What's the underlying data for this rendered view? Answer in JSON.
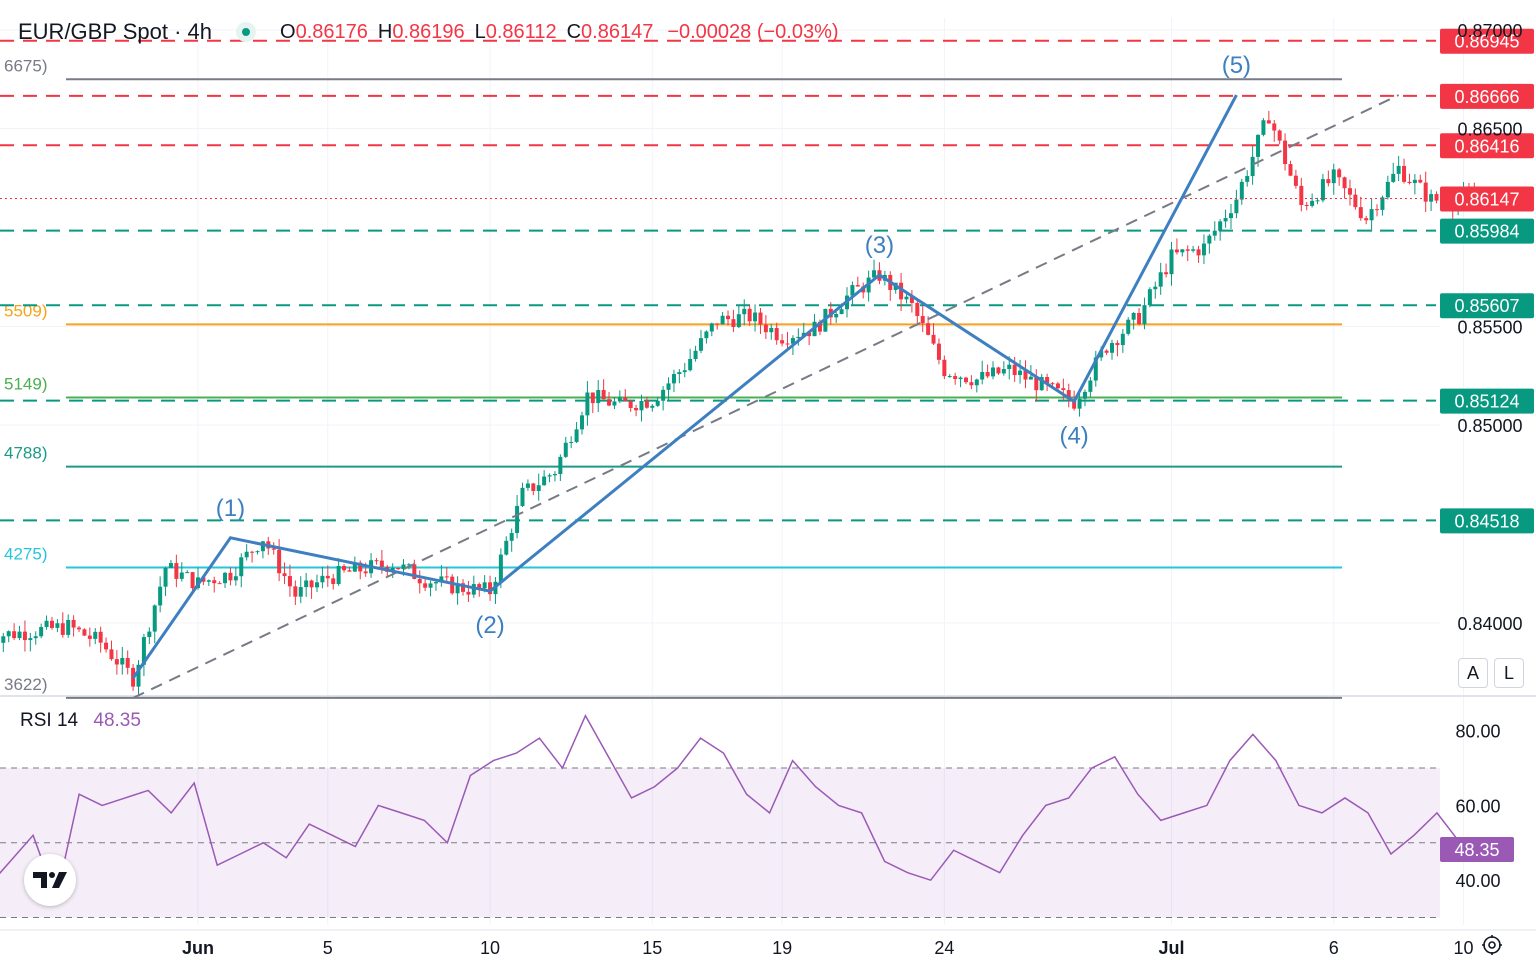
{
  "header": {
    "symbol": "EUR/GBP Spot · 4h",
    "open_label": "O",
    "open": "0.86176",
    "high_label": "H",
    "high": "0.86196",
    "low_label": "L",
    "low": "0.86112",
    "close_label": "C",
    "close": "0.86147",
    "change": "−0.00028 (−0.03%)"
  },
  "rsi": {
    "label": "RSI 14",
    "value": "48.35"
  },
  "controls": {
    "auto": "A",
    "log": "L"
  },
  "colors": {
    "up": "#089981",
    "down": "#f23645",
    "wave": "#3d7fc1",
    "rsi": "#9b59b6",
    "fib_orange": "#f7a21b",
    "fib_green": "#4caf50",
    "fib_teal": "#1d9a87",
    "fib_cyan": "#26c6da",
    "fib_gray": "#787b86"
  },
  "chart_data": [
    {
      "type": "candlestick",
      "title": "EUR/GBP Spot · 4h",
      "x_labels": [
        "Jun",
        "5",
        "10",
        "15",
        "19",
        "24",
        "Jul",
        "6",
        "10"
      ],
      "y_ticks": [
        "0.84000",
        "0.85000",
        "0.85500",
        "0.86500",
        "0.87000"
      ],
      "ylim": [
        0.8365,
        0.8706
      ],
      "current_price": "0.86147",
      "price_path": [
        {
          "date": "May 28",
          "price": 0.8398
        },
        {
          "date": "May 29",
          "price": 0.839
        },
        {
          "date": "May 30",
          "price": 0.8372
        },
        {
          "date": "May 31",
          "price": 0.8428
        },
        {
          "date": "Jun 1",
          "price": 0.842
        },
        {
          "date": "Jun 2",
          "price": 0.8425
        },
        {
          "date": "Jun 3",
          "price": 0.8443
        },
        {
          "date": "Jun 4",
          "price": 0.8414
        },
        {
          "date": "Jun 5",
          "price": 0.8423
        },
        {
          "date": "Jun 6",
          "price": 0.8427
        },
        {
          "date": "Jun 7",
          "price": 0.843
        },
        {
          "date": "Jun 8",
          "price": 0.8422
        },
        {
          "date": "Jun 9",
          "price": 0.8418
        },
        {
          "date": "Jun 10",
          "price": 0.8416
        },
        {
          "date": "Jun 11",
          "price": 0.8465
        },
        {
          "date": "Jun 12",
          "price": 0.8477
        },
        {
          "date": "Jun 13",
          "price": 0.8515
        },
        {
          "date": "Jun 14",
          "price": 0.851
        },
        {
          "date": "Jun 15",
          "price": 0.8513
        },
        {
          "date": "Jun 16",
          "price": 0.853
        },
        {
          "date": "Jun 17",
          "price": 0.8553
        },
        {
          "date": "Jun 18",
          "price": 0.8555
        },
        {
          "date": "Jun 19",
          "price": 0.8545
        },
        {
          "date": "Jun 20",
          "price": 0.8549
        },
        {
          "date": "Jun 21",
          "price": 0.8565
        },
        {
          "date": "Jun 22",
          "price": 0.8576
        },
        {
          "date": "Jun 23",
          "price": 0.856
        },
        {
          "date": "Jun 24",
          "price": 0.8528
        },
        {
          "date": "Jun 25",
          "price": 0.8523
        },
        {
          "date": "Jun 26",
          "price": 0.8528
        },
        {
          "date": "Jun 27",
          "price": 0.852
        },
        {
          "date": "Jun 28",
          "price": 0.8512
        },
        {
          "date": "Jun 29",
          "price": 0.854
        },
        {
          "date": "Jun 30",
          "price": 0.8555
        },
        {
          "date": "Jul 1",
          "price": 0.8585
        },
        {
          "date": "Jul 2",
          "price": 0.859
        },
        {
          "date": "Jul 3",
          "price": 0.8615
        },
        {
          "date": "Jul 4",
          "price": 0.8657
        },
        {
          "date": "Jul 5",
          "price": 0.8611
        },
        {
          "date": "Jul 6",
          "price": 0.8625
        },
        {
          "date": "Jul 7",
          "price": 0.8605
        },
        {
          "date": "Jul 8",
          "price": 0.863
        },
        {
          "date": "Jul 9",
          "price": 0.8614
        }
      ],
      "horizontal_levels": [
        {
          "price": 0.86945,
          "label": "0.86945",
          "style": "dashed",
          "color": "#f23645"
        },
        {
          "price": 0.86666,
          "label": "0.86666",
          "style": "dashed",
          "color": "#f23645"
        },
        {
          "price": 0.86416,
          "label": "0.86416",
          "style": "dashed",
          "color": "#f23645"
        },
        {
          "price": 0.85984,
          "label": "0.85984",
          "style": "dashed",
          "color": "#089981"
        },
        {
          "price": 0.85607,
          "label": "0.85607",
          "style": "dashed",
          "color": "#089981"
        },
        {
          "price": 0.85124,
          "label": "0.85124",
          "style": "dashed",
          "color": "#089981"
        },
        {
          "price": 0.84518,
          "label": "0.84518",
          "style": "dashed",
          "color": "#089981"
        }
      ],
      "fib_levels": [
        {
          "price": 0.8675,
          "label": "6675)",
          "color": "#787b86"
        },
        {
          "price": 0.8551,
          "label": "5509)",
          "color": "#f7a21b"
        },
        {
          "price": 0.8514,
          "label": "5149)",
          "color": "#4caf50"
        },
        {
          "price": 0.8479,
          "label": "4788)",
          "color": "#1d9a87"
        },
        {
          "price": 0.8428,
          "label": "4275)",
          "color": "#26c6da"
        },
        {
          "price": 0.8362,
          "label": "3622)",
          "color": "#787b86"
        }
      ],
      "elliott_waves": [
        {
          "label": "(1)",
          "date": "Jun 2",
          "price": 0.8443
        },
        {
          "label": "(2)",
          "date": "Jun 10",
          "price": 0.8416
        },
        {
          "label": "(3)",
          "date": "Jun 22",
          "price": 0.8576
        },
        {
          "label": "(4)",
          "date": "Jun 28",
          "price": 0.8512
        },
        {
          "label": "(5)",
          "date": "Jul 3",
          "price": 0.8667
        }
      ],
      "trend_channel": [
        {
          "date": "May 30",
          "price": 0.8362
        },
        {
          "date": "Jul 8",
          "price": 0.8667
        }
      ]
    },
    {
      "type": "line",
      "title": "RSI 14",
      "y_ticks": [
        "40.00",
        "60.00",
        "80.00"
      ],
      "ylim": [
        28,
        85
      ],
      "bands": [
        30,
        50,
        70
      ],
      "current_value": "48.35",
      "values": [
        38,
        45,
        52,
        35,
        63,
        60,
        62,
        64,
        58,
        66,
        44,
        47,
        50,
        46,
        55,
        52,
        49,
        60,
        58,
        56,
        50,
        68,
        72,
        74,
        78,
        70,
        84,
        73,
        62,
        65,
        70,
        78,
        74,
        63,
        58,
        72,
        65,
        60,
        58,
        45,
        42,
        40,
        48,
        45,
        42,
        52,
        60,
        62,
        70,
        73,
        63,
        56,
        58,
        60,
        72,
        79,
        72,
        60,
        58,
        62,
        58,
        47,
        52,
        58,
        50,
        48
      ]
    }
  ]
}
